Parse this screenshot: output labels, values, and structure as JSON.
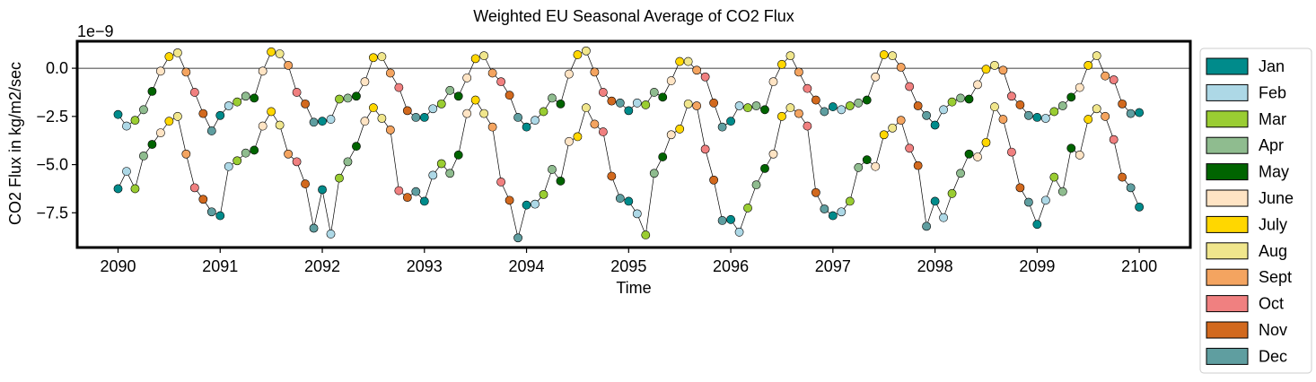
{
  "chart_data": {
    "type": "line",
    "title": "Weighted EU Seasonal Average of CO2 Flux",
    "xlabel": "Time",
    "ylabel": "CO2 Flux in kg/m2/sec",
    "y_offset_label": "1e−9",
    "xlim": [
      2089.6,
      2100.5
    ],
    "ylim": [
      -9.3,
      1.4
    ],
    "x_ticks": [
      2090,
      2091,
      2092,
      2093,
      2094,
      2095,
      2096,
      2097,
      2098,
      2099,
      2100
    ],
    "x_tick_labels": [
      "2090",
      "2091",
      "2092",
      "2093",
      "2094",
      "2095",
      "2096",
      "2097",
      "2098",
      "2099",
      "2100"
    ],
    "y_ticks": [
      0.0,
      -2.5,
      -5.0,
      -7.5
    ],
    "y_tick_labels": [
      "0.0",
      "−2.5",
      "−5.0",
      "−7.5"
    ],
    "reference_line_y": 0.0,
    "grid": false,
    "legend_position": "outside-right",
    "months": [
      {
        "label": "Jan",
        "color": "#008b8b"
      },
      {
        "label": "Feb",
        "color": "#add8e6"
      },
      {
        "label": "Mar",
        "color": "#9acd32"
      },
      {
        "label": "Apr",
        "color": "#8fbc8f"
      },
      {
        "label": "May",
        "color": "#006400"
      },
      {
        "label": "June",
        "color": "#ffe4c4"
      },
      {
        "label": "July",
        "color": "#ffd700"
      },
      {
        "label": "Aug",
        "color": "#f0e68c"
      },
      {
        "label": "Sept",
        "color": "#f4a460"
      },
      {
        "label": "Oct",
        "color": "#f08080"
      },
      {
        "label": "Nov",
        "color": "#d2691e"
      },
      {
        "label": "Dec",
        "color": "#5f9ea0"
      }
    ],
    "series": [
      {
        "start_year": 2090,
        "values": [
          [
            -2.4,
            -3.0,
            -2.7,
            -2.15,
            -1.2,
            -0.15,
            0.6,
            0.8,
            -0.2,
            -1.25,
            -2.35,
            -3.25
          ],
          [
            -2.45,
            -1.95,
            -1.75,
            -1.45,
            -1.55,
            -0.15,
            0.85,
            0.75,
            0.15,
            -1.25,
            -1.85,
            -2.8
          ],
          [
            -2.75,
            -2.65,
            -1.6,
            -1.55,
            -1.45,
            -0.7,
            0.55,
            0.6,
            -0.25,
            -1.0,
            -2.2,
            -2.55
          ],
          [
            -2.55,
            -2.1,
            -1.85,
            -1.15,
            -1.45,
            -0.5,
            0.5,
            0.65,
            -0.25,
            -0.7,
            -1.4,
            -2.55
          ],
          [
            -3.05,
            -2.7,
            -2.25,
            -1.55,
            -1.85,
            -0.3,
            0.7,
            0.9,
            -0.2,
            -1.25,
            -1.7,
            -1.8
          ],
          [
            -2.2,
            -1.8,
            -1.9,
            -1.25,
            -1.5,
            -0.65,
            0.35,
            0.35,
            -0.1,
            -0.45,
            -1.8,
            -3.05
          ],
          [
            -2.75,
            -1.95,
            -2.05,
            -1.95,
            -2.15,
            -0.7,
            0.2,
            0.65,
            -0.2,
            -1.05,
            -1.65,
            -2.25
          ],
          [
            -2.0,
            -2.15,
            -1.95,
            -1.8,
            -1.65,
            -0.45,
            0.7,
            0.65,
            0.05,
            -0.95,
            -1.95,
            -2.45
          ],
          [
            -2.95,
            -2.15,
            -1.75,
            -1.55,
            -1.6,
            -0.85,
            -0.05,
            0.15,
            -0.1,
            -1.45,
            -1.9,
            -2.45
          ],
          [
            -2.55,
            -2.6,
            -2.25,
            -1.95,
            -1.5,
            -1.0,
            0.15,
            0.65,
            -0.4,
            -0.6,
            -1.85,
            -2.35
          ]
        ]
      },
      {
        "start_year": 2090,
        "values": [
          [
            -6.25,
            -5.35,
            -6.25,
            -4.55,
            -3.95,
            -3.35,
            -2.75,
            -2.5,
            -4.45,
            -6.2,
            -6.8,
            -7.45
          ],
          [
            -7.65,
            -5.1,
            -4.8,
            -4.4,
            -4.25,
            -3.0,
            -2.25,
            -2.95,
            -4.45,
            -4.85,
            -6.0,
            -8.3
          ],
          [
            -6.3,
            -8.6,
            -5.7,
            -4.85,
            -4.05,
            -2.75,
            -2.05,
            -2.6,
            -3.2,
            -6.35,
            -6.7,
            -6.4
          ],
          [
            -6.9,
            -5.55,
            -4.95,
            -5.45,
            -4.5,
            -2.35,
            -1.65,
            -2.35,
            -3.05,
            -5.9,
            -6.85,
            -8.8
          ],
          [
            -7.1,
            -7.05,
            -6.55,
            -5.25,
            -5.85,
            -3.8,
            -3.55,
            -2.05,
            -2.9,
            -3.3,
            -5.6,
            -6.75
          ],
          [
            -6.9,
            -7.55,
            -8.65,
            -5.45,
            -4.6,
            -3.45,
            -3.15,
            -1.85,
            -1.95,
            -4.2,
            -5.8,
            -7.9
          ],
          [
            -7.85,
            -8.5,
            -7.25,
            -6.05,
            -5.2,
            -4.45,
            -2.5,
            -2.05,
            -2.35,
            -3.0,
            -6.45,
            -7.3
          ],
          [
            -7.65,
            -7.45,
            -6.9,
            -5.15,
            -4.75,
            -5.1,
            -3.45,
            -3.1,
            -2.7,
            -4.15,
            -5.05,
            -8.2
          ],
          [
            -6.9,
            -7.75,
            -6.5,
            -5.45,
            -4.45,
            -4.6,
            -3.85,
            -2.0,
            -2.65,
            -4.35,
            -6.2,
            -6.95
          ],
          [
            -8.1,
            -6.85,
            -5.65,
            -6.4,
            -4.15,
            -4.5,
            -2.65,
            -2.1,
            -2.5,
            -3.7,
            -5.65,
            -6.2
          ]
        ],
        "final_values": [
          -7.2
        ]
      }
    ],
    "series1_final_values": [
      -2.3
    ]
  }
}
